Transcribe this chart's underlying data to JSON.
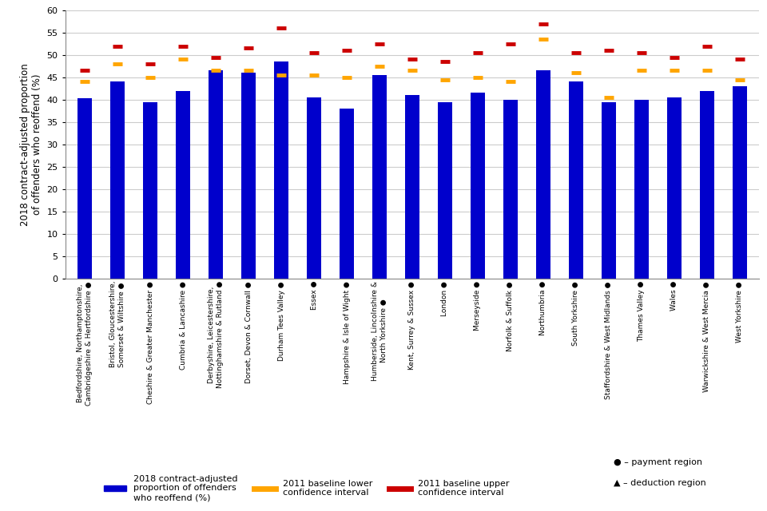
{
  "categories": [
    "Bedfordshire, Northamptonshire,\nCambridgeshire & Hertfordshire ●",
    "Bristol, Gloucestershire,\nSomerset & Wiltshire ●",
    "Cheshire & Greater Manchester ●",
    "Cumbria & Lancashire ●",
    "Derbyshire, Leicestershire,\nNottinghamshire & Rutland ●",
    "Dorset, Devon & Cornwall ●",
    "Durham Tees Valley ●",
    "Essex ●",
    "Hampshire & Isle of Wight ●",
    "Humberside, Lincolnshire &\nNorth Yorkshire ●",
    "Kent, Surrey & Sussex ●",
    "London ●",
    "Merseyside ●",
    "Norfolk & Suffolk ●",
    "Northumbria ●",
    "South Yorkshire ●",
    "Staffordshire & West Midlands ●",
    "Thames Valley ●",
    "Wales ●",
    "Warwickshire & West Mercia ●",
    "West Yorkshire ●"
  ],
  "bar_values": [
    40.3,
    44.0,
    39.5,
    42.0,
    46.5,
    46.0,
    48.5,
    40.5,
    38.0,
    45.5,
    41.0,
    39.5,
    41.5,
    40.0,
    46.5,
    44.0,
    39.5,
    40.0,
    40.5,
    42.0,
    43.0
  ],
  "lower_ci": [
    44.0,
    48.0,
    45.0,
    49.0,
    46.5,
    46.5,
    45.5,
    45.5,
    45.0,
    47.5,
    46.5,
    44.5,
    45.0,
    44.0,
    53.5,
    46.0,
    40.5,
    46.5,
    46.5,
    46.5,
    44.5
  ],
  "upper_ci": [
    46.5,
    52.0,
    48.0,
    52.0,
    49.5,
    51.5,
    56.0,
    50.5,
    51.0,
    52.5,
    49.0,
    48.5,
    50.5,
    52.5,
    57.0,
    50.5,
    51.0,
    50.5,
    49.5,
    52.0,
    49.0
  ],
  "bar_color": "#0000cc",
  "lower_ci_color": "#FFA500",
  "upper_ci_color": "#CC0000",
  "ylabel": "2018 contract-adjusted proportion\nof offenders who reoffend (%)",
  "ylim": [
    0,
    60
  ],
  "yticks": [
    0,
    5,
    10,
    15,
    20,
    25,
    30,
    35,
    40,
    45,
    50,
    55,
    60
  ],
  "background_color": "#ffffff",
  "grid_color": "#cccccc",
  "legend_blue_label": "2018 contract-adjusted\nproportion of offenders\nwho reoffend (%)",
  "legend_orange_label": "2011 baseline lower\nconfidence interval",
  "legend_red_label": "2011 baseline upper\nconfidence interval",
  "note_payment": "● – payment region",
  "note_deduction": "▲ – deduction region"
}
